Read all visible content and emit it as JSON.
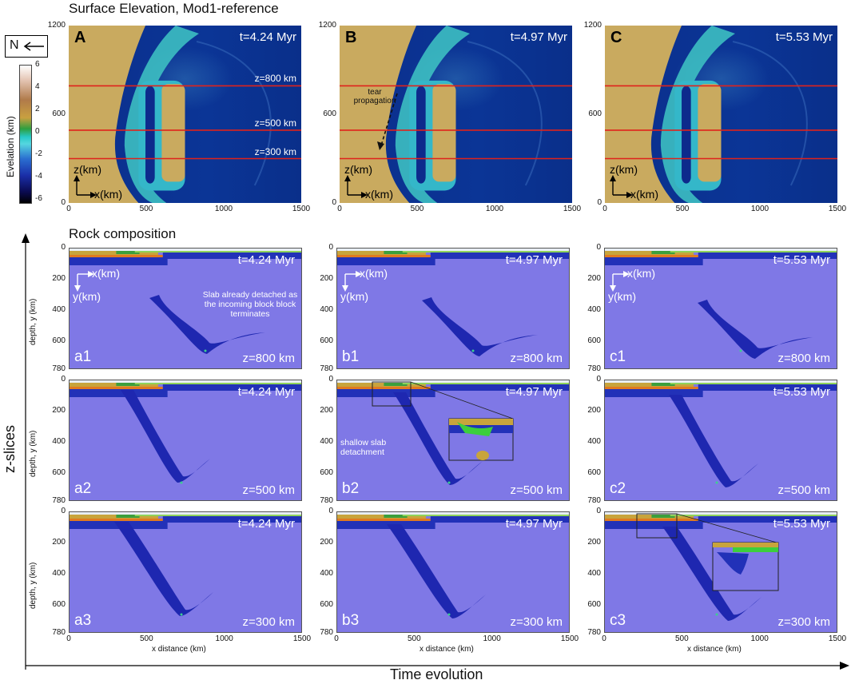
{
  "sections": {
    "surface_title": "Surface Elevation, Mod1-reference",
    "rock_title": "Rock composition"
  },
  "compass": {
    "label": "N"
  },
  "colorbar": {
    "label": "Evelation (km)",
    "ticks": [
      "6",
      "4",
      "2",
      "0",
      "-2",
      "-4",
      "-6"
    ]
  },
  "surface_panels": [
    {
      "letter": "A",
      "time": "t=4.24 Myr"
    },
    {
      "letter": "B",
      "time": "t=4.97 Myr"
    },
    {
      "letter": "C",
      "time": "t=5.53 Myr"
    }
  ],
  "surface_axes": {
    "y_ticks": [
      "1200",
      "600",
      "0"
    ],
    "x_ticks": [
      "0",
      "500",
      "1000",
      "1500"
    ],
    "z_axis": "z(km)",
    "x_axis": "x(km)"
  },
  "slice_lines": [
    "z=800 km",
    "z=500 km",
    "z=300 km"
  ],
  "tear": {
    "text": "tear propagation"
  },
  "rock_panels": [
    [
      {
        "id": "a1",
        "time": "t=4.24 Myr",
        "z": "z=800 km"
      },
      {
        "id": "b1",
        "time": "t=4.97 Myr",
        "z": "z=800 km"
      },
      {
        "id": "c1",
        "time": "t=5.53 Myr",
        "z": "z=800 km"
      }
    ],
    [
      {
        "id": "a2",
        "time": "t=4.24 Myr",
        "z": "z=500 km"
      },
      {
        "id": "b2",
        "time": "t=4.97 Myr",
        "z": "z=500 km"
      },
      {
        "id": "c2",
        "time": "t=5.53 Myr",
        "z": "z=500 km"
      }
    ],
    [
      {
        "id": "a3",
        "time": "t=4.24 Myr",
        "z": "z=300 km"
      },
      {
        "id": "b3",
        "time": "t=4.97 Myr",
        "z": "z=300 km"
      },
      {
        "id": "c3",
        "time": "t=5.53 Myr",
        "z": "z=300 km"
      }
    ]
  ],
  "rock_axes": {
    "y_ticks": [
      "0",
      "200",
      "400",
      "600",
      "780"
    ],
    "x_ticks": [
      "0",
      "500",
      "1000",
      "1500"
    ],
    "ylabel": "depth, y (km)",
    "xlabel": "x distance (km)",
    "x_axis": "x(km)",
    "y_axis": "y(km)"
  },
  "annotations": {
    "slab_detached": "Slab already detached as the incoming block block terminates",
    "shallow": "shallow slab detachment"
  },
  "side_labels": {
    "z_slices": "z-slices",
    "time_evolution": "Time evolution"
  }
}
